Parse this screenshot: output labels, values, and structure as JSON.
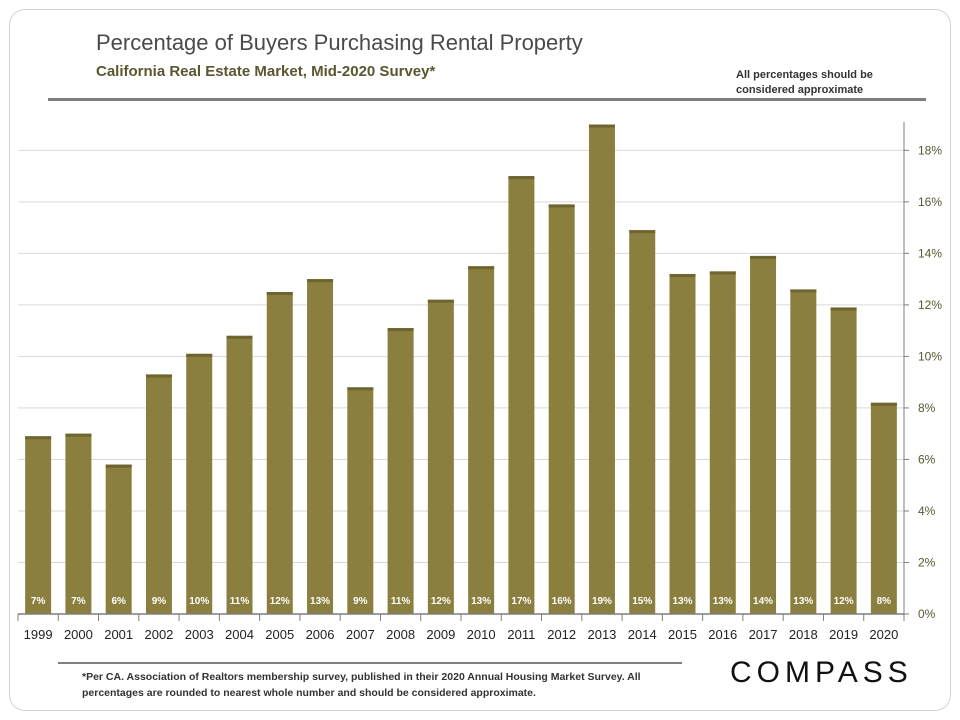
{
  "header": {
    "title": "Percentage of Buyers Purchasing Rental Property",
    "subtitle": "California Real Estate Market, Mid-2020 Survey*",
    "note": "All percentages should be considered approximate"
  },
  "footer": {
    "footnote": "*Per CA. Association of Realtors membership survey, published in their 2020 Annual Housing Market Survey. All percentages are rounded to nearest whole number and should be considered approximate.",
    "logo": "COMPASS"
  },
  "colors": {
    "bar": "#8b7f3f",
    "bar_label": "#ffffff",
    "axis_text": "#5a5630",
    "grid": "#d9d9d9"
  },
  "chart_data": {
    "type": "bar",
    "categories": [
      "1999",
      "2000",
      "2001",
      "2002",
      "2003",
      "2004",
      "2005",
      "2006",
      "2007",
      "2008",
      "2009",
      "2010",
      "2011",
      "2012",
      "2013",
      "2014",
      "2015",
      "2016",
      "2017",
      "2018",
      "2019",
      "2020"
    ],
    "values": [
      6.9,
      7.0,
      5.8,
      9.3,
      10.1,
      10.8,
      12.5,
      13.0,
      8.8,
      11.1,
      12.2,
      13.5,
      17.0,
      15.9,
      19.0,
      14.9,
      13.2,
      13.3,
      13.9,
      12.6,
      11.9,
      8.2
    ],
    "data_labels": [
      "7%",
      "7%",
      "6%",
      "9%",
      "10%",
      "11%",
      "12%",
      "13%",
      "9%",
      "11%",
      "12%",
      "13%",
      "17%",
      "16%",
      "19%",
      "15%",
      "13%",
      "13%",
      "14%",
      "13%",
      "12%",
      "8%"
    ],
    "y_ticks": [
      "0%",
      "2%",
      "4%",
      "6%",
      "8%",
      "10%",
      "12%",
      "14%",
      "16%",
      "18%"
    ],
    "ylim": [
      0,
      19.1
    ],
    "y_axis_position": "right",
    "grid": true
  }
}
